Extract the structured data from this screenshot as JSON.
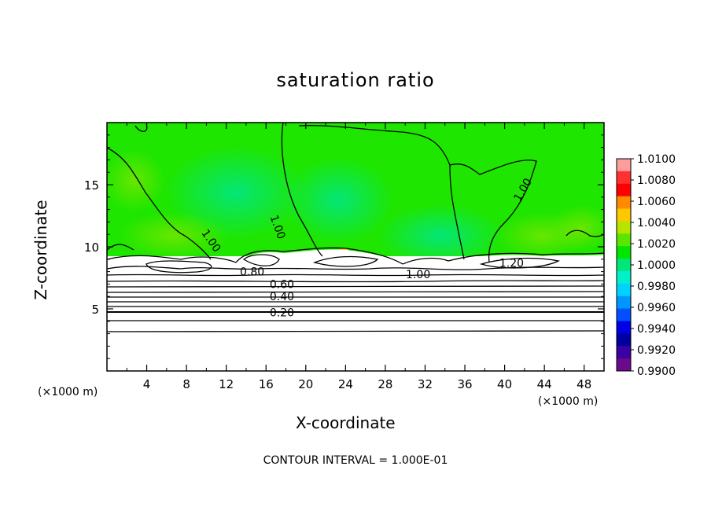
{
  "chart_data": {
    "type": "heatmap",
    "title": "saturation ratio",
    "xlabel": "X-coordinate",
    "ylabel": "Z-coordinate",
    "x_unit_left": "(×1000 m)",
    "x_unit_right": "(×1000 m)",
    "footer": "CONTOUR INTERVAL = 1.000E-01",
    "xlim": [
      0,
      50
    ],
    "ylim": [
      0,
      20
    ],
    "x_ticks": [
      "4",
      "8",
      "12",
      "16",
      "20",
      "24",
      "28",
      "32",
      "36",
      "40",
      "44",
      "48"
    ],
    "y_ticks": [
      "5",
      "10",
      "15"
    ],
    "colorbar": {
      "labels": [
        "1.0100",
        "1.0080",
        "1.0060",
        "1.0040",
        "1.0020",
        "1.0000",
        "0.9980",
        "0.9960",
        "0.9940",
        "0.9920",
        "0.9900"
      ],
      "colors": [
        "#ff9c9c",
        "#ff3030",
        "#ff0000",
        "#ff8a00",
        "#ffc800",
        "#b4e600",
        "#5ae600",
        "#00e600",
        "#00e67a",
        "#00f0c8",
        "#00d2ff",
        "#0096ff",
        "#0050ff",
        "#0000e6",
        "#0000a0",
        "#3a00a0",
        "#6a0a8a"
      ]
    },
    "contour_labels": [
      "1.00",
      "1.00",
      "1.00",
      "1.20",
      "1.00",
      "0.80",
      "0.60",
      "0.40",
      "0.20"
    ],
    "contour_interval": 0.1
  }
}
